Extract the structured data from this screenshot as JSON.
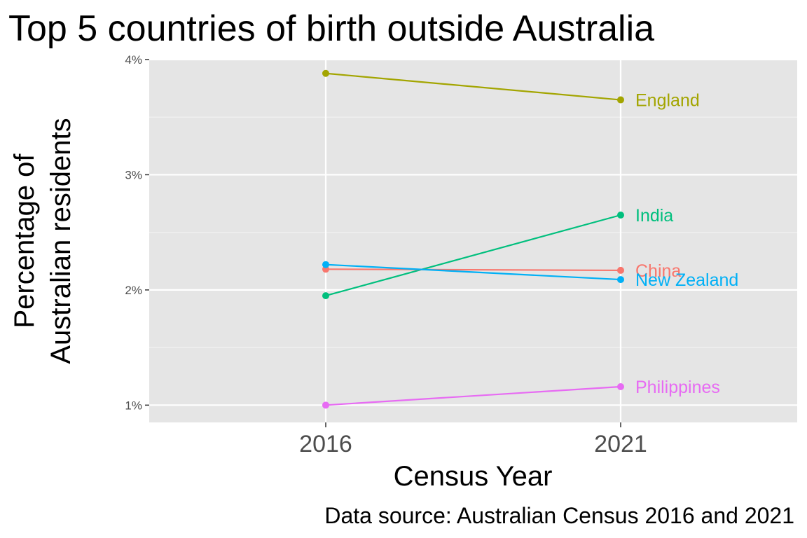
{
  "chart_data": {
    "type": "line",
    "title": "Top 5 countries of birth outside Australia",
    "xlabel": "Census Year",
    "ylabel_lines": [
      "Percentage of",
      "Australian residents"
    ],
    "caption": "Data source: Australian Census 2016 and 2021",
    "x": [
      "2016",
      "2021"
    ],
    "ylim": [
      0.85,
      4.0
    ],
    "y_ticks": [
      1,
      2,
      3,
      4
    ],
    "y_tick_labels": [
      "1%",
      "2%",
      "3%",
      "4%"
    ],
    "grid": true,
    "legend": "direct labels at right end of lines",
    "series": [
      {
        "name": "England",
        "values": [
          3.88,
          3.65
        ],
        "color": "#a3a500"
      },
      {
        "name": "India",
        "values": [
          1.95,
          2.65
        ],
        "color": "#00bf7d"
      },
      {
        "name": "China",
        "values": [
          2.18,
          2.17
        ],
        "color": "#f8766d"
      },
      {
        "name": "New Zealand",
        "values": [
          2.22,
          2.09
        ],
        "color": "#00b0f6"
      },
      {
        "name": "Philippines",
        "values": [
          1.0,
          1.16
        ],
        "color": "#e76bf3"
      }
    ]
  }
}
